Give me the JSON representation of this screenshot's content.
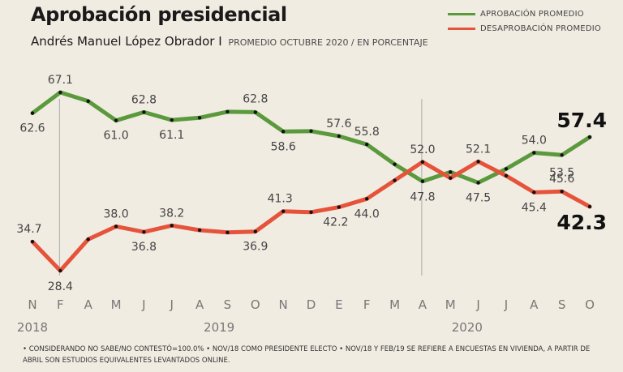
{
  "header": {
    "title": "Aprobación presidencial",
    "subtitle_main": "Andrés Manuel López Obrador I",
    "subtitle_note": "PROMEDIO OCTUBRE 2020 / EN PORCENTAJE"
  },
  "legend": [
    {
      "label": "APROBACIÓN PROMEDIO",
      "color": "#5a9a3c"
    },
    {
      "label": "DESAPROBACIÓN PROMEDIO",
      "color": "#e5533a"
    }
  ],
  "footnote": "• CONSIDERANDO NO SABE/NO CONTESTÓ=100.0% • NOV/18 COMO PRESIDENTE ELECTO • NOV/18 Y FEB/19 SE REFIERE A ENCUESTAS EN VIVIENDA, A PARTIR DE ABRIL SON ESTUDIOS EQUIVALENTES LEVANTADOS ONLINE.",
  "chart_data": {
    "type": "line",
    "categories": [
      "N",
      "F",
      "A",
      "M",
      "J",
      "J",
      "A",
      "S",
      "O",
      "N",
      "D",
      "E",
      "F",
      "M",
      "A",
      "M",
      "J",
      "J",
      "A",
      "S",
      "O"
    ],
    "years": [
      "2018",
      "2019",
      "2020"
    ],
    "grid": false,
    "series": [
      {
        "name": "APROBACIÓN PROMEDIO",
        "color": "#5a9a3c",
        "values": [
          62.6,
          67.1,
          65.2,
          61.0,
          62.8,
          61.1,
          61.6,
          62.9,
          62.8,
          58.6,
          58.7,
          57.6,
          55.8,
          51.5,
          47.8,
          49.8,
          47.5,
          50.5,
          54.0,
          53.5,
          57.4
        ],
        "labels": [
          "62.6",
          "67.1",
          "",
          "61.0",
          "62.8",
          "61.1",
          "",
          "",
          "62.8",
          "58.6",
          "",
          "57.6",
          "55.8",
          "",
          "47.8",
          "",
          "47.5",
          "",
          "54.0",
          "53.5",
          "57.4"
        ]
      },
      {
        "name": "DESAPROBACIÓN PROMEDIO",
        "color": "#e5533a",
        "values": [
          34.7,
          28.4,
          35.2,
          38.0,
          36.8,
          38.2,
          37.2,
          36.7,
          36.9,
          41.3,
          41.1,
          42.2,
          44.0,
          48.0,
          52.0,
          48.5,
          52.1,
          49.0,
          45.4,
          45.6,
          42.3
        ],
        "labels": [
          "34.7",
          "28.4",
          "",
          "38.0",
          "36.8",
          "38.2",
          "",
          "",
          "36.9",
          "41.3",
          "",
          "42.2",
          "44.0",
          "",
          "52.0",
          "",
          "52.1",
          "",
          "45.4",
          "45.6",
          "42.3"
        ]
      }
    ],
    "highlight": [
      "57.4",
      "42.3"
    ]
  }
}
